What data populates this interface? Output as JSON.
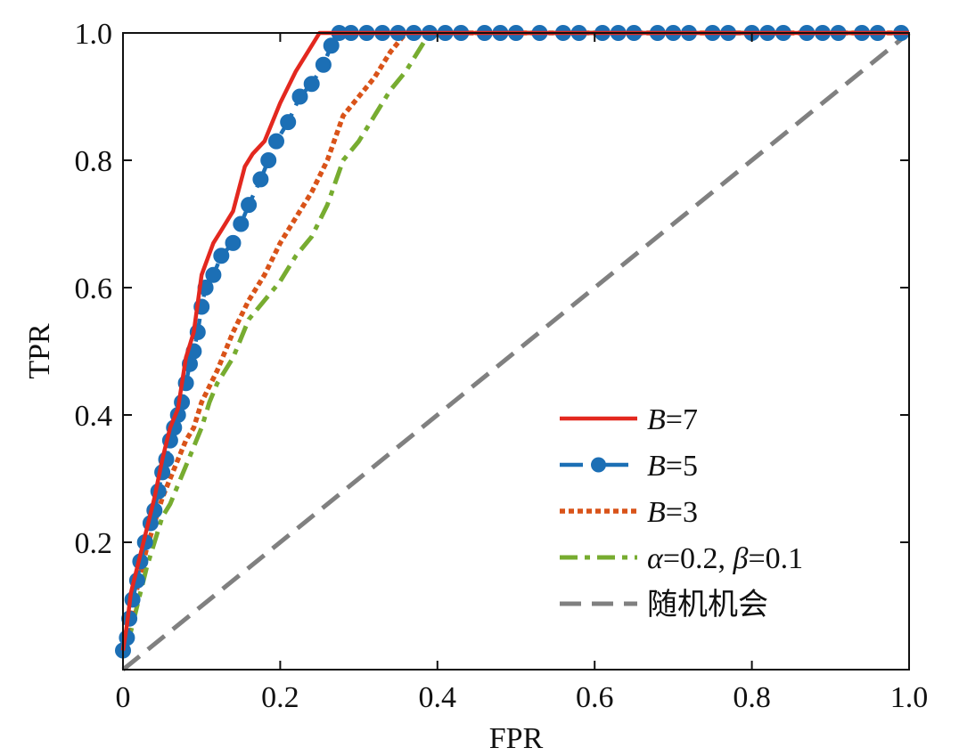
{
  "chart_data": {
    "type": "line",
    "title": "",
    "xlabel": "FPR",
    "ylabel": "TPR",
    "xlim": [
      0,
      1.0
    ],
    "ylim": [
      0,
      1.0
    ],
    "x_ticks": [
      0,
      0.2,
      0.4,
      0.6,
      0.8,
      1.0
    ],
    "x_tick_labels": [
      "0",
      "0.2",
      "0.4",
      "0.6",
      "0.8",
      "1.0"
    ],
    "y_ticks": [
      0.2,
      0.4,
      0.6,
      0.8,
      1.0
    ],
    "y_tick_labels": [
      "0.2",
      "0.4",
      "0.6",
      "0.8",
      "1.0"
    ],
    "grid": false,
    "legend_position": "bottom-right",
    "series": [
      {
        "name": "B=7",
        "label_italic": "B",
        "label_rest": "=7",
        "color": "#e3281f",
        "style": "solid",
        "points": [
          [
            0,
            0.03
          ],
          [
            0.005,
            0.07
          ],
          [
            0.01,
            0.12
          ],
          [
            0.02,
            0.17
          ],
          [
            0.03,
            0.22
          ],
          [
            0.04,
            0.27
          ],
          [
            0.05,
            0.33
          ],
          [
            0.06,
            0.38
          ],
          [
            0.07,
            0.41
          ],
          [
            0.08,
            0.49
          ],
          [
            0.09,
            0.53
          ],
          [
            0.1,
            0.62
          ],
          [
            0.115,
            0.67
          ],
          [
            0.125,
            0.69
          ],
          [
            0.14,
            0.72
          ],
          [
            0.155,
            0.79
          ],
          [
            0.165,
            0.81
          ],
          [
            0.18,
            0.83
          ],
          [
            0.2,
            0.89
          ],
          [
            0.22,
            0.94
          ],
          [
            0.24,
            0.98
          ],
          [
            0.25,
            1.0
          ],
          [
            0.27,
            1.0
          ],
          [
            1.0,
            1.0
          ]
        ]
      },
      {
        "name": "B=5",
        "label_italic": "B",
        "label_rest": "=5",
        "color": "#1c6fb5",
        "style": "dash-dot-markers",
        "points": [
          [
            0,
            0.03
          ],
          [
            0.005,
            0.05
          ],
          [
            0.008,
            0.08
          ],
          [
            0.012,
            0.11
          ],
          [
            0.018,
            0.14
          ],
          [
            0.022,
            0.17
          ],
          [
            0.028,
            0.2
          ],
          [
            0.035,
            0.23
          ],
          [
            0.04,
            0.25
          ],
          [
            0.045,
            0.28
          ],
          [
            0.05,
            0.31
          ],
          [
            0.055,
            0.33
          ],
          [
            0.06,
            0.36
          ],
          [
            0.065,
            0.38
          ],
          [
            0.07,
            0.4
          ],
          [
            0.075,
            0.42
          ],
          [
            0.08,
            0.45
          ],
          [
            0.085,
            0.48
          ],
          [
            0.09,
            0.5
          ],
          [
            0.095,
            0.53
          ],
          [
            0.1,
            0.57
          ],
          [
            0.105,
            0.6
          ],
          [
            0.115,
            0.62
          ],
          [
            0.125,
            0.65
          ],
          [
            0.14,
            0.67
          ],
          [
            0.15,
            0.7
          ],
          [
            0.16,
            0.73
          ],
          [
            0.175,
            0.77
          ],
          [
            0.185,
            0.8
          ],
          [
            0.195,
            0.83
          ],
          [
            0.21,
            0.86
          ],
          [
            0.225,
            0.9
          ],
          [
            0.24,
            0.92
          ],
          [
            0.255,
            0.95
          ],
          [
            0.265,
            0.98
          ],
          [
            0.275,
            1.0
          ],
          [
            0.29,
            1.0
          ],
          [
            1.0,
            1.0
          ]
        ],
        "markers": [
          [
            0,
            0.03
          ],
          [
            0.005,
            0.05
          ],
          [
            0.008,
            0.08
          ],
          [
            0.012,
            0.11
          ],
          [
            0.018,
            0.14
          ],
          [
            0.022,
            0.17
          ],
          [
            0.028,
            0.2
          ],
          [
            0.035,
            0.23
          ],
          [
            0.04,
            0.25
          ],
          [
            0.045,
            0.28
          ],
          [
            0.05,
            0.31
          ],
          [
            0.055,
            0.33
          ],
          [
            0.06,
            0.36
          ],
          [
            0.065,
            0.38
          ],
          [
            0.07,
            0.4
          ],
          [
            0.075,
            0.42
          ],
          [
            0.08,
            0.45
          ],
          [
            0.085,
            0.48
          ],
          [
            0.09,
            0.5
          ],
          [
            0.095,
            0.53
          ],
          [
            0.1,
            0.57
          ],
          [
            0.105,
            0.6
          ],
          [
            0.115,
            0.62
          ],
          [
            0.125,
            0.65
          ],
          [
            0.14,
            0.67
          ],
          [
            0.15,
            0.7
          ],
          [
            0.16,
            0.73
          ],
          [
            0.175,
            0.77
          ],
          [
            0.185,
            0.8
          ],
          [
            0.195,
            0.83
          ],
          [
            0.21,
            0.86
          ],
          [
            0.225,
            0.9
          ],
          [
            0.24,
            0.92
          ],
          [
            0.255,
            0.95
          ],
          [
            0.265,
            0.98
          ],
          [
            0.275,
            1.0
          ],
          [
            0.29,
            1.0
          ],
          [
            0.31,
            1.0
          ],
          [
            0.33,
            1.0
          ],
          [
            0.35,
            1.0
          ],
          [
            0.37,
            1.0
          ],
          [
            0.39,
            1.0
          ],
          [
            0.41,
            1.0
          ],
          [
            0.43,
            1.0
          ],
          [
            0.46,
            1.0
          ],
          [
            0.48,
            1.0
          ],
          [
            0.5,
            1.0
          ],
          [
            0.53,
            1.0
          ],
          [
            0.56,
            1.0
          ],
          [
            0.58,
            1.0
          ],
          [
            0.61,
            1.0
          ],
          [
            0.63,
            1.0
          ],
          [
            0.65,
            1.0
          ],
          [
            0.68,
            1.0
          ],
          [
            0.7,
            1.0
          ],
          [
            0.72,
            1.0
          ],
          [
            0.75,
            1.0
          ],
          [
            0.77,
            1.0
          ],
          [
            0.8,
            1.0
          ],
          [
            0.82,
            1.0
          ],
          [
            0.84,
            1.0
          ],
          [
            0.87,
            1.0
          ],
          [
            0.89,
            1.0
          ],
          [
            0.91,
            1.0
          ],
          [
            0.94,
            1.0
          ],
          [
            0.96,
            1.0
          ],
          [
            0.99,
            1.0
          ]
        ]
      },
      {
        "name": "B=3",
        "label_italic": "B",
        "label_rest": "=3",
        "color": "#d95319",
        "style": "dotted",
        "points": [
          [
            0,
            0.03
          ],
          [
            0.01,
            0.08
          ],
          [
            0.02,
            0.14
          ],
          [
            0.03,
            0.19
          ],
          [
            0.04,
            0.23
          ],
          [
            0.05,
            0.27
          ],
          [
            0.06,
            0.3
          ],
          [
            0.07,
            0.33
          ],
          [
            0.08,
            0.36
          ],
          [
            0.09,
            0.38
          ],
          [
            0.1,
            0.42
          ],
          [
            0.12,
            0.47
          ],
          [
            0.14,
            0.53
          ],
          [
            0.16,
            0.58
          ],
          [
            0.18,
            0.62
          ],
          [
            0.2,
            0.67
          ],
          [
            0.22,
            0.71
          ],
          [
            0.24,
            0.75
          ],
          [
            0.26,
            0.8
          ],
          [
            0.28,
            0.87
          ],
          [
            0.3,
            0.9
          ],
          [
            0.32,
            0.93
          ],
          [
            0.34,
            0.97
          ],
          [
            0.36,
            1.0
          ],
          [
            0.38,
            1.0
          ],
          [
            1.0,
            1.0
          ]
        ]
      },
      {
        "name": "α=0.2, β=0.1",
        "label_italic": "α",
        "label_rest": "=0.2, ",
        "label_italic2": "β",
        "label_rest2": "=0.1",
        "color": "#77ac30",
        "style": "dash-dot",
        "points": [
          [
            0,
            0.02
          ],
          [
            0.01,
            0.06
          ],
          [
            0.02,
            0.11
          ],
          [
            0.03,
            0.16
          ],
          [
            0.04,
            0.2
          ],
          [
            0.05,
            0.24
          ],
          [
            0.06,
            0.26
          ],
          [
            0.07,
            0.29
          ],
          [
            0.08,
            0.32
          ],
          [
            0.09,
            0.35
          ],
          [
            0.1,
            0.38
          ],
          [
            0.11,
            0.42
          ],
          [
            0.12,
            0.45
          ],
          [
            0.14,
            0.49
          ],
          [
            0.16,
            0.55
          ],
          [
            0.18,
            0.58
          ],
          [
            0.2,
            0.61
          ],
          [
            0.22,
            0.65
          ],
          [
            0.24,
            0.68
          ],
          [
            0.26,
            0.73
          ],
          [
            0.28,
            0.8
          ],
          [
            0.3,
            0.83
          ],
          [
            0.32,
            0.87
          ],
          [
            0.34,
            0.91
          ],
          [
            0.36,
            0.94
          ],
          [
            0.38,
            0.98
          ],
          [
            0.39,
            1.0
          ],
          [
            0.41,
            1.0
          ],
          [
            1.0,
            1.0
          ]
        ]
      },
      {
        "name": "随机机会",
        "label_italic": "",
        "label_rest": "随机机会",
        "color": "#808080",
        "style": "dashed",
        "points": [
          [
            0,
            0
          ],
          [
            1.0,
            1.0
          ]
        ]
      }
    ]
  }
}
